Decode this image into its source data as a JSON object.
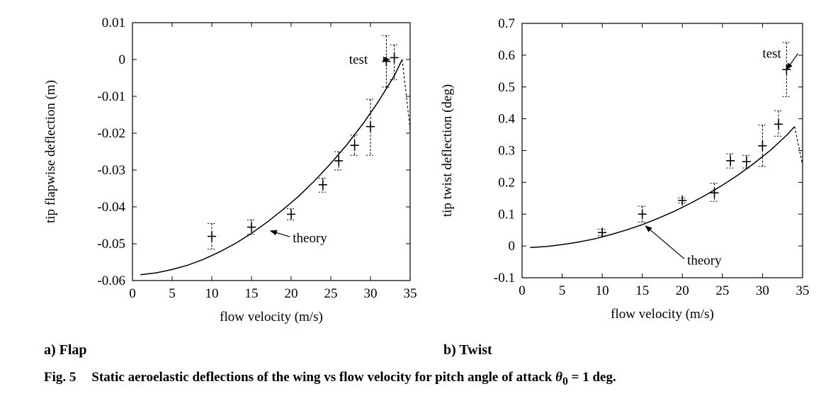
{
  "figure": {
    "panel_a_label": "a) Flap",
    "panel_b_label": "b) Twist",
    "caption_number": "Fig. 5",
    "caption_text": "Static aeroelastic deflections of the wing vs flow velocity for pitch angle of attack",
    "caption_symbol": "θ",
    "caption_subscript": "0",
    "caption_suffix": " = 1 deg."
  },
  "chart_data": [
    {
      "type": "line",
      "xlabel": "flow velocity (m/s)",
      "ylabel": "tip flapwise deflection (m)",
      "xlim": [
        0,
        35
      ],
      "ylim": [
        -0.06,
        0.01
      ],
      "xticks": [
        0,
        5,
        10,
        15,
        20,
        25,
        30,
        35
      ],
      "xtick_labels": [
        "0",
        "5",
        "10",
        "15",
        "20",
        "25",
        "30",
        "35"
      ],
      "yticks": [
        -0.06,
        -0.05,
        -0.04,
        -0.03,
        -0.02,
        -0.01,
        0,
        0.01
      ],
      "ytick_labels": [
        "-0.06",
        "-0.05",
        "-0.04",
        "-0.03",
        "-0.02",
        "-0.01",
        "0",
        "0.01"
      ],
      "grid": false,
      "theory": {
        "label": "theory",
        "x": [
          1,
          3,
          5,
          7,
          9,
          11,
          13,
          15,
          17,
          19,
          21,
          23,
          25,
          27,
          29,
          31,
          33,
          34
        ],
        "y": [
          -0.0584,
          -0.0579,
          -0.057,
          -0.0558,
          -0.0542,
          -0.0522,
          -0.0499,
          -0.0472,
          -0.0441,
          -0.0407,
          -0.037,
          -0.0328,
          -0.0282,
          -0.0232,
          -0.0176,
          -0.0114,
          -0.0044,
          0.0
        ],
        "dashed_x": [
          34,
          35
        ],
        "dashed_y": [
          0.0,
          -0.019
        ]
      },
      "test": {
        "label": "test",
        "x": [
          10,
          15,
          20,
          24,
          26,
          28,
          30,
          32,
          33
        ],
        "y": [
          -0.048,
          -0.0455,
          -0.042,
          -0.034,
          -0.0275,
          -0.0233,
          -0.0182,
          -0.0005,
          0.0005
        ],
        "err_low": [
          -0.0515,
          -0.0475,
          -0.0435,
          -0.036,
          -0.03,
          -0.026,
          -0.026,
          -0.0075,
          -0.0055
        ],
        "err_high": [
          -0.0445,
          -0.0435,
          -0.0405,
          -0.0322,
          -0.025,
          -0.0205,
          -0.0108,
          0.0065,
          0.004
        ]
      },
      "annotations": [
        {
          "text": "test",
          "x": 27.3,
          "y": 0.0,
          "target_x": 32.4,
          "target_y": 0.0
        },
        {
          "text": "theory",
          "x": 20.2,
          "y": -0.0485,
          "target_x": 17.4,
          "target_y": -0.0465
        }
      ]
    },
    {
      "type": "line",
      "xlabel": "flow velocity (m/s)",
      "ylabel": "tip twist deflection (deg)",
      "xlim": [
        0,
        35
      ],
      "ylim": [
        -0.1,
        0.7
      ],
      "xticks": [
        0,
        5,
        10,
        15,
        20,
        25,
        30,
        35
      ],
      "xtick_labels": [
        "0",
        "5",
        "10",
        "15",
        "20",
        "25",
        "30",
        "35"
      ],
      "yticks": [
        -0.1,
        0,
        0.1,
        0.2,
        0.3,
        0.4,
        0.5,
        0.6,
        0.7
      ],
      "ytick_labels": [
        "-0.1",
        "0",
        "0.1",
        "0.2",
        "0.3",
        "0.4",
        "0.5",
        "0.6",
        "0.7"
      ],
      "grid": false,
      "theory": {
        "label": "theory",
        "x": [
          1,
          3,
          5,
          7,
          9,
          11,
          13,
          15,
          17,
          19,
          21,
          23,
          25,
          27,
          29,
          31,
          33,
          34
        ],
        "y": [
          -0.005,
          -0.002,
          0.004,
          0.012,
          0.022,
          0.035,
          0.05,
          0.067,
          0.087,
          0.109,
          0.134,
          0.161,
          0.191,
          0.224,
          0.261,
          0.301,
          0.348,
          0.375
        ],
        "dashed_x": [
          34,
          35
        ],
        "dashed_y": [
          0.375,
          0.255
        ]
      },
      "test": {
        "label": "test",
        "x": [
          10,
          15,
          20,
          24,
          26,
          28,
          30,
          32,
          33
        ],
        "y": [
          0.042,
          0.1,
          0.143,
          0.167,
          0.268,
          0.265,
          0.315,
          0.383,
          0.555
        ],
        "err_low": [
          0.032,
          0.075,
          0.135,
          0.14,
          0.245,
          0.245,
          0.25,
          0.345,
          0.47
        ],
        "err_high": [
          0.052,
          0.125,
          0.151,
          0.197,
          0.29,
          0.285,
          0.38,
          0.425,
          0.64
        ]
      },
      "annotations": [
        {
          "text": "test",
          "x": 30.0,
          "y": 0.605,
          "target_x": 33.0,
          "target_y": 0.555
        },
        {
          "text": "theory",
          "x": 20.6,
          "y": -0.045,
          "target_x": 15.4,
          "target_y": 0.063
        }
      ]
    }
  ]
}
